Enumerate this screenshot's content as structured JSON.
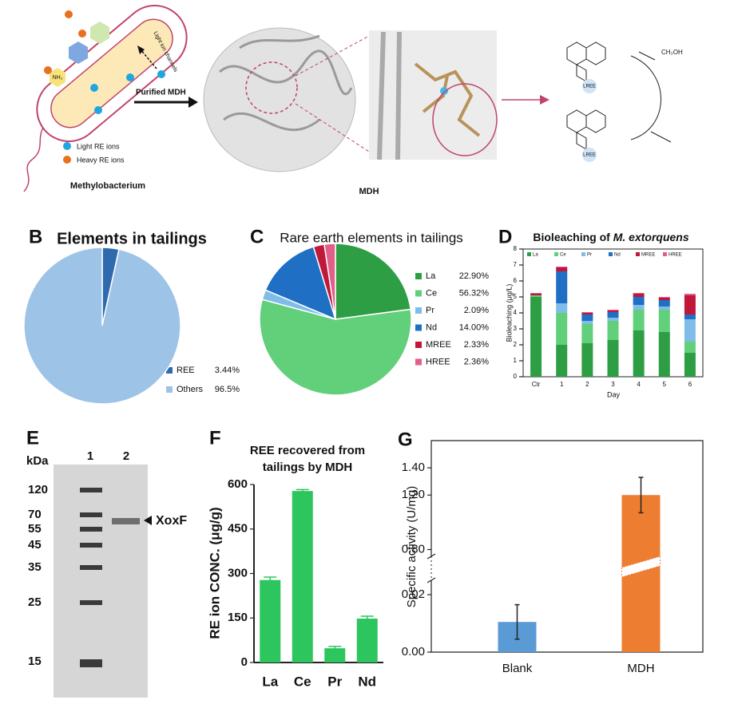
{
  "panel_a": {
    "light_ion_channels": "Light ion channels",
    "purified_mdh": "Purified MDH",
    "legend": [
      "Light RE ions",
      "Heavy RE ions"
    ],
    "organism": "Methylobacterium",
    "protein": "MDH",
    "amine": "NH₂",
    "metal_labels": [
      "LREE",
      "LREE"
    ],
    "substrate": "CH₃OH"
  },
  "panel_e": {
    "panel": "E",
    "unit": "kDa",
    "lanes": [
      "1",
      "2"
    ],
    "markers": [
      120,
      70,
      55,
      45,
      35,
      25,
      15
    ],
    "band_label": "XoxF"
  },
  "chart_data": [
    {
      "type": "pie",
      "panel": "B",
      "title": "Elements in tailings",
      "categories": [
        "REE",
        "Others"
      ],
      "values": [
        3.44,
        96.5
      ],
      "value_labels": [
        "3.44%",
        "96.5%"
      ],
      "colors": [
        "#2e6aad",
        "#9dc3e6"
      ]
    },
    {
      "type": "pie",
      "panel": "C",
      "title": "Rare earth elements in tailings",
      "categories": [
        "La",
        "Ce",
        "Pr",
        "Nd",
        "MREE",
        "HREE"
      ],
      "values": [
        22.9,
        56.32,
        2.09,
        14.0,
        2.33,
        2.36
      ],
      "value_labels": [
        "22.90%",
        "56.32%",
        "2.09%",
        "14.00%",
        "2.33%",
        "2.36%"
      ],
      "colors": [
        "#2e9e45",
        "#62cf7a",
        "#7fbde8",
        "#1f6fc4",
        "#c0183a",
        "#e0608a"
      ]
    },
    {
      "type": "bar",
      "stacked": true,
      "panel": "D",
      "title": "Bioleaching of",
      "title_italic": "M. extorquens",
      "x_label": "Day",
      "y_label": "Bioleaching (μg/L)",
      "categories": [
        "Ctr",
        "1",
        "2",
        "3",
        "4",
        "5",
        "6"
      ],
      "series": [
        {
          "name": "La",
          "color": "#2e9e45",
          "values": [
            5.0,
            2.0,
            2.1,
            2.3,
            2.9,
            2.8,
            1.5
          ]
        },
        {
          "name": "Ce",
          "color": "#62cf7a",
          "values": [
            0.1,
            2.0,
            1.2,
            1.2,
            1.3,
            1.4,
            0.7
          ]
        },
        {
          "name": "Pr",
          "color": "#7fbde8",
          "values": [
            0,
            0.6,
            0.2,
            0.2,
            0.3,
            0.2,
            1.4
          ]
        },
        {
          "name": "Nd",
          "color": "#1f6fc4",
          "values": [
            0,
            2.0,
            0.4,
            0.35,
            0.5,
            0.4,
            0.3
          ]
        },
        {
          "name": "MREE",
          "color": "#c0183a",
          "values": [
            0.1,
            0.25,
            0.1,
            0.1,
            0.2,
            0.15,
            1.2
          ]
        },
        {
          "name": "HREE",
          "color": "#e0608a",
          "values": [
            0.05,
            0.05,
            0.05,
            0.05,
            0.05,
            0.05,
            0.1
          ]
        }
      ],
      "ylim": [
        0,
        8
      ],
      "yticks": [
        0,
        1,
        2,
        3,
        4,
        5,
        6,
        7,
        8
      ]
    },
    {
      "type": "bar",
      "panel": "F",
      "title": [
        "REE recovered from",
        "tailings by MDH"
      ],
      "y_label": "RE ion CONC. (μg/g)",
      "categories": [
        "La",
        "Ce",
        "Pr",
        "Nd"
      ],
      "values": [
        278,
        578,
        48,
        148
      ],
      "errors": [
        10,
        5,
        6,
        8
      ],
      "color": "#2dc55e",
      "ylim": [
        0,
        600
      ],
      "yticks": [
        0,
        150,
        300,
        450,
        600
      ]
    },
    {
      "type": "bar",
      "panel": "G",
      "y_label": "Specific activity (U/mg)",
      "categories": [
        "Blank",
        "MDH"
      ],
      "values": [
        0.0105,
        1.2
      ],
      "errors": [
        0.006,
        0.13
      ],
      "colors": [
        "#5b9bd5",
        "#ed7d31"
      ],
      "ylim": [
        0,
        1.6
      ],
      "ybreak": [
        0.025,
        0.75
      ],
      "yticks": [
        {
          "value": 0,
          "label": "0.00"
        },
        {
          "value": 0.02,
          "label": "0.02"
        },
        {
          "value": 0.8,
          "label": "0.80"
        },
        {
          "value": 1.2,
          "label": "1.20"
        },
        {
          "value": 1.4,
          "label": "1.40"
        }
      ]
    }
  ]
}
